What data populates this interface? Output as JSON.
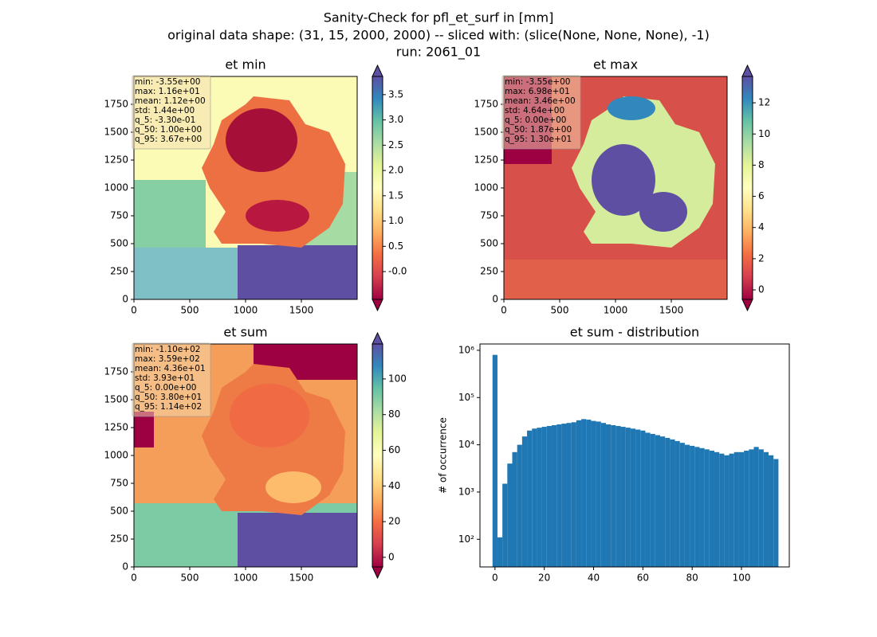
{
  "suptitle": [
    "Sanity-Check for pfl_et_surf in [mm]",
    "original data shape: (31, 15, 2000, 2000) -- sliced with: (slice(None, None, None), -1)",
    "run: 2061_01"
  ],
  "chart_data": [
    {
      "type": "heatmap",
      "title": "et min",
      "colormap": "Spectral",
      "extend": "both",
      "xlim": [
        0,
        2000
      ],
      "ylim": [
        0,
        2000
      ],
      "xticks": [
        0,
        500,
        1000,
        1500
      ],
      "yticks": [
        0,
        250,
        500,
        750,
        1000,
        1250,
        1500,
        1750
      ],
      "colorbar": {
        "lim": [
          -0.55,
          3.86
        ],
        "ticks": [
          {
            "value": 0,
            "label": "-0.0"
          },
          0.5,
          {
            "value": 1,
            "label": "1.0"
          },
          1.5,
          {
            "value": 2,
            "label": "2.0"
          },
          2.5,
          {
            "value": 3,
            "label": "3.0"
          },
          3.5
        ]
      },
      "stats": [
        "min: -3.55e+00",
        "max: 1.16e+01",
        "mean: 1.12e+00",
        "std: 1.44e+00",
        "q_5: -3.30e-01",
        "q_50: 1.00e+00",
        "q_95: 3.67e+00"
      ]
    },
    {
      "type": "heatmap",
      "title": "et max",
      "colormap": "Spectral",
      "extend": "both",
      "xlim": [
        0,
        2000
      ],
      "ylim": [
        0,
        2000
      ],
      "xticks": [
        0,
        500,
        1000,
        1500
      ],
      "yticks": [
        0,
        250,
        500,
        750,
        1000,
        1250,
        1500,
        1750
      ],
      "colorbar": {
        "lim": [
          -0.61,
          13.69
        ],
        "ticks": [
          0,
          2,
          4,
          6,
          8,
          10,
          12
        ]
      },
      "stats": [
        "min: -3.55e+00",
        "max: 6.98e+01",
        "mean: 3.46e+00",
        "std: 4.64e+00",
        "q_5: 0.00e+00",
        "q_50: 1.87e+00",
        "q_95: 1.30e+01"
      ]
    },
    {
      "type": "heatmap",
      "title": "et sum",
      "colormap": "Spectral",
      "extend": "both",
      "xlim": [
        0,
        2000
      ],
      "ylim": [
        0,
        2000
      ],
      "xticks": [
        0,
        500,
        1000,
        1500
      ],
      "yticks": [
        0,
        250,
        500,
        750,
        1000,
        1250,
        1500,
        1750
      ],
      "colorbar": {
        "lim": [
          -5.4,
          119.6
        ],
        "ticks": [
          0,
          20,
          40,
          60,
          80,
          100
        ]
      },
      "stats": [
        "min: -1.10e+02",
        "max: 3.59e+02",
        "mean: 4.36e+01",
        "std: 3.93e+01",
        "q_5: 0.00e+00",
        "q_50: 3.80e+01",
        "q_95: 1.14e+02"
      ]
    },
    {
      "type": "histogram",
      "title": "et sum - distribution",
      "ylabel": "# of occurrence",
      "color": "#1f77b4",
      "log_y": true,
      "xlim": [
        -6.1,
        119.4
      ],
      "ylim": [
        26,
        1360000
      ],
      "xticks": [
        0,
        20,
        40,
        60,
        80,
        100
      ],
      "yticks": [
        {
          "value": 100,
          "label": "10²"
        },
        {
          "value": 1000,
          "label": "10³"
        },
        {
          "value": 10000,
          "label": "10⁴"
        },
        {
          "value": 100000,
          "label": "10⁵"
        },
        {
          "value": 1000000,
          "label": "10⁶"
        }
      ],
      "bins": [
        -1,
        1,
        3,
        5,
        7,
        9,
        11,
        13,
        15,
        17,
        19,
        21,
        23,
        25,
        27,
        29,
        31,
        33,
        35,
        37,
        39,
        41,
        43,
        45,
        47,
        49,
        51,
        53,
        55,
        57,
        59,
        61,
        63,
        65,
        67,
        69,
        71,
        73,
        75,
        77,
        79,
        81,
        83,
        85,
        87,
        89,
        91,
        93,
        95,
        97,
        99,
        101,
        103,
        105,
        107,
        109,
        111,
        113,
        115
      ],
      "values": [
        800000,
        110,
        1500,
        4000,
        7000,
        10000,
        15000,
        20000,
        22000,
        23000,
        24000,
        25000,
        26000,
        27000,
        28000,
        29000,
        30000,
        33000,
        35000,
        34000,
        32000,
        31000,
        29000,
        27000,
        26000,
        25000,
        24000,
        23000,
        22000,
        21000,
        20000,
        18000,
        17000,
        16000,
        15000,
        14000,
        13000,
        12000,
        11000,
        10000,
        9500,
        9000,
        8500,
        8000,
        7500,
        7000,
        6500,
        6000,
        6500,
        7000,
        7000,
        7500,
        8000,
        9000,
        8000,
        7000,
        6000,
        5000
      ]
    }
  ]
}
